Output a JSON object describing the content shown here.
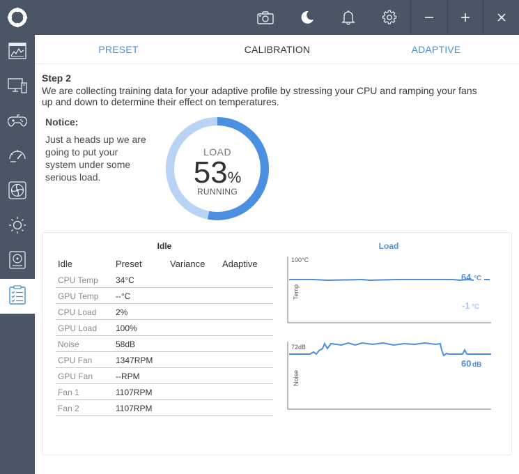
{
  "titlebar": {
    "icons": [
      "logo-icon",
      "camera-icon",
      "moon-icon",
      "bell-icon",
      "gear-icon",
      "minimize-icon",
      "maximize-icon",
      "close-icon"
    ]
  },
  "sidebar": {
    "items": [
      {
        "icon": "dashboard-icon",
        "active": false
      },
      {
        "icon": "monitor-icon",
        "active": false
      },
      {
        "icon": "gamepad-icon",
        "active": false
      },
      {
        "icon": "speedometer-icon",
        "active": false
      },
      {
        "icon": "fan-icon",
        "active": false
      },
      {
        "icon": "brightness-icon",
        "active": false
      },
      {
        "icon": "storage-icon",
        "active": false
      },
      {
        "icon": "checklist-icon",
        "active": true
      }
    ]
  },
  "tabs": {
    "preset": "PRESET",
    "calibration": "CALIBRATION",
    "adaptive": "ADAPTIVE",
    "active": "calibration"
  },
  "step": {
    "title": "Step 2",
    "description": "We are collecting training data for your adaptive profile by stressing your CPU and ramping your fans up and down to determine their effect on temperatures."
  },
  "notice": {
    "title": "Notice:",
    "text": "Just a heads up we are going to put your system under some serious load."
  },
  "gauge": {
    "label": "LOAD",
    "value": "53",
    "unit": "%",
    "status": "RUNNING",
    "fraction": 0.53,
    "colors": {
      "fill": "#4a8fe0",
      "track": "#b8d3f3"
    }
  },
  "table": {
    "title": "Idle",
    "columns": [
      "Idle",
      "Preset",
      "Variance",
      "Adaptive"
    ],
    "rows": [
      {
        "label": "CPU Temp",
        "preset": "34°C"
      },
      {
        "label": "GPU Temp",
        "preset": "--°C"
      },
      {
        "label": "CPU Load",
        "preset": "2%"
      },
      {
        "label": "GPU Load",
        "preset": "100%"
      },
      {
        "label": "Noise",
        "preset": "58dB"
      },
      {
        "label": "CPU Fan",
        "preset": "1347RPM"
      },
      {
        "label": "GPU Fan",
        "preset": "--RPM"
      },
      {
        "label": "Fan 1",
        "preset": "1107RPM"
      },
      {
        "label": "Fan 2",
        "preset": "1107RPM"
      }
    ]
  },
  "charts": {
    "title": "Load",
    "temp": {
      "axis_label": "Temp",
      "max_label": "100°C",
      "current": "64",
      "current_unit": "°C",
      "secondary": "-1",
      "secondary_unit": "°C"
    },
    "noise": {
      "axis_label": "Noise",
      "max_label": "72dB",
      "current": "60",
      "current_unit": "dB"
    },
    "colors": {
      "line": "#4a8fe0",
      "secondary": "#a9c9ef"
    }
  }
}
